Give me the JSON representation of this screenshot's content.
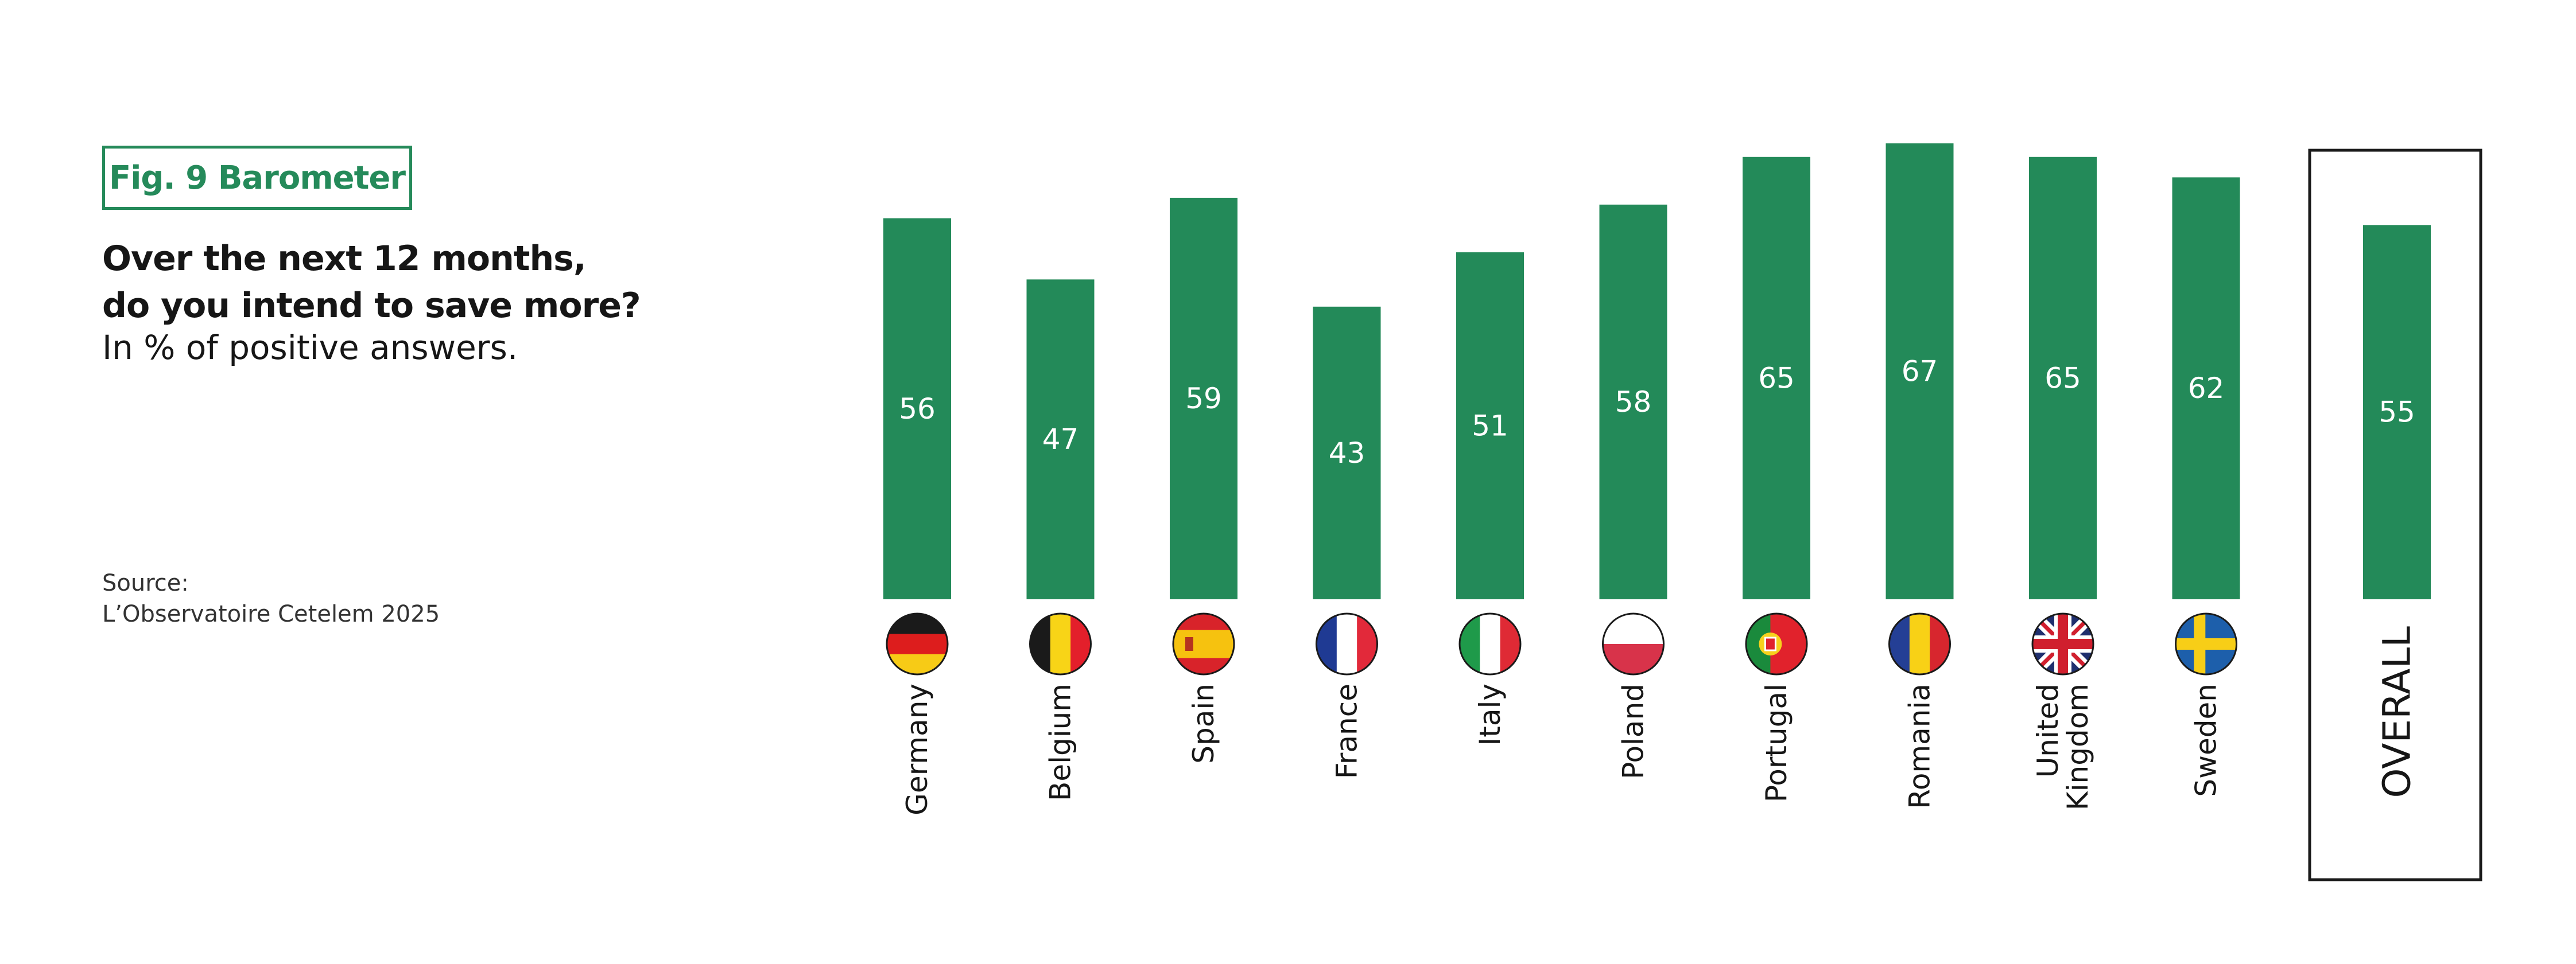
{
  "header": {
    "fig_label": "Fig. 9 Barometer",
    "question_line1": "Over the next 12 months,",
    "question_line2": "do you intend to save more?",
    "subtitle": "In % of positive answers."
  },
  "source": {
    "label": "Source:",
    "text": "L’Observatoire Cetelem 2025"
  },
  "colors": {
    "bar": "#238a59",
    "value_text": "#ffffff",
    "axis_text": "#161616"
  },
  "chart_data": {
    "type": "bar",
    "title": "Over the next 12 months, do you intend to save more?",
    "subtitle": "In % of positive answers.",
    "categories": [
      "Germany",
      "Belgium",
      "Spain",
      "France",
      "Italy",
      "Poland",
      "Portugal",
      "Romania",
      "United Kingdom",
      "Sweden"
    ],
    "category_label_lines": [
      [
        "Germany"
      ],
      [
        "Belgium"
      ],
      [
        "Spain"
      ],
      [
        "France"
      ],
      [
        "Italy"
      ],
      [
        "Poland"
      ],
      [
        "Portugal"
      ],
      [
        "Romania"
      ],
      [
        "United",
        "Kingdom"
      ],
      [
        "Sweden"
      ]
    ],
    "flags": [
      "germany-flag-icon",
      "belgium-flag-icon",
      "spain-flag-icon",
      "france-flag-icon",
      "italy-flag-icon",
      "poland-flag-icon",
      "portugal-flag-icon",
      "romania-flag-icon",
      "united-kingdom-flag-icon",
      "sweden-flag-icon"
    ],
    "values": [
      56,
      47,
      59,
      43,
      51,
      58,
      65,
      67,
      65,
      62
    ],
    "overall": {
      "label": "OVERALL",
      "value": 55
    },
    "ylim": [
      0,
      67
    ],
    "grid": false,
    "legend": "none",
    "data_labels": "inside-bar-middle"
  }
}
